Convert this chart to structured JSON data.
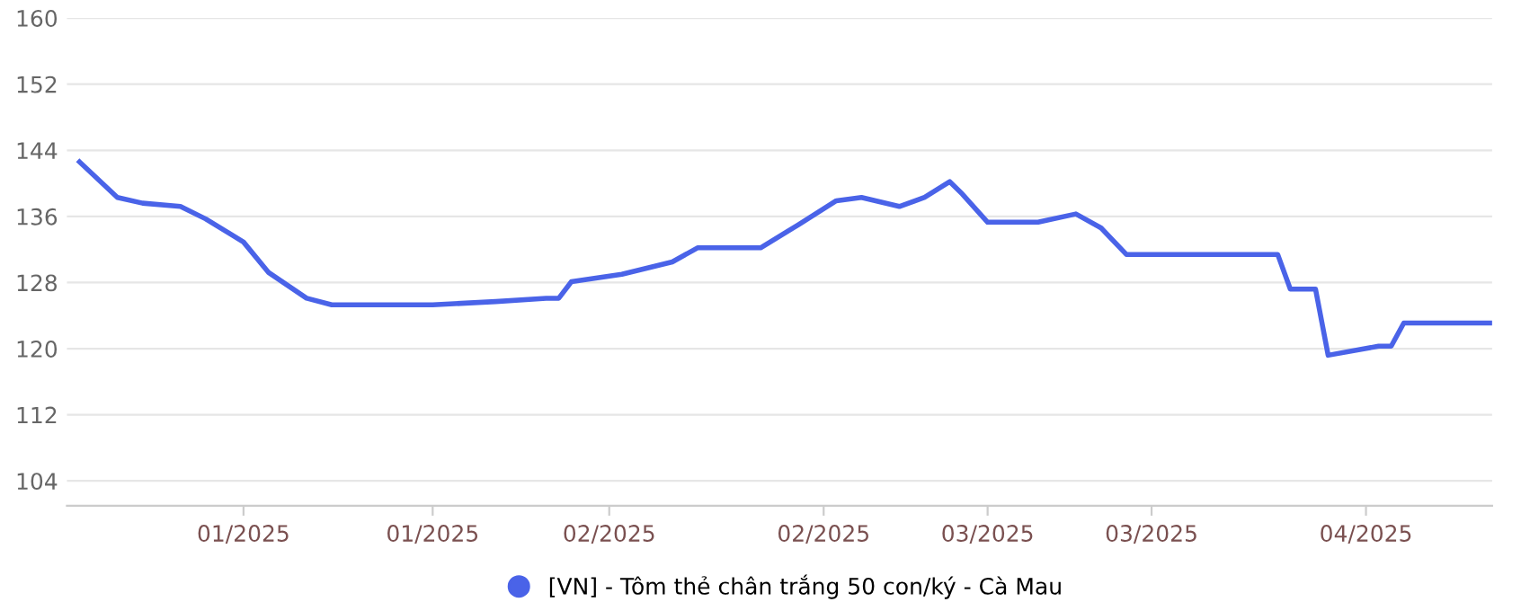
{
  "chart_data": {
    "type": "line",
    "x": [
      "2024-12-22",
      "2024-12-25",
      "2024-12-27",
      "2024-12-30",
      "2025-01-01",
      "2025-01-04",
      "2025-01-06",
      "2025-01-09",
      "2025-01-11",
      "2025-01-19",
      "2025-01-24",
      "2025-01-28",
      "2025-01-29",
      "2025-01-30",
      "2025-02-03",
      "2025-02-07",
      "2025-02-09",
      "2025-02-14",
      "2025-02-17",
      "2025-02-20",
      "2025-02-22",
      "2025-02-25",
      "2025-02-27",
      "2025-03-01",
      "2025-03-02",
      "2025-03-04",
      "2025-03-08",
      "2025-03-11",
      "2025-03-13",
      "2025-03-15",
      "2025-03-27",
      "2025-03-28",
      "2025-03-30",
      "2025-03-31",
      "2025-04-04",
      "2025-04-05",
      "2025-04-06",
      "2025-04-13"
    ],
    "series": [
      {
        "name": "[VN] - Tôm thẻ chân trắng 50 con/ký - Cà Mau",
        "color": "#4a63e8",
        "values": [
          142.6,
          138.3,
          137.6,
          137.2,
          135.7,
          132.9,
          129.2,
          126.1,
          125.3,
          125.3,
          125.7,
          126.1,
          126.1,
          128.1,
          129,
          130.5,
          132.2,
          132.2,
          135,
          137.9,
          138.3,
          137.2,
          138.3,
          140.2,
          138.7,
          135.3,
          135.3,
          136.3,
          134.6,
          131.4,
          131.4,
          127.2,
          127.2,
          119.2,
          120.3,
          120.3,
          123.1,
          123.1
        ]
      }
    ],
    "xlim": [
      "2024-12-21",
      "2025-04-13"
    ],
    "xticks": [
      {
        "value": "2025-01-04",
        "label": "01/2025"
      },
      {
        "value": "2025-01-19",
        "label": "01/2025"
      },
      {
        "value": "2025-02-02",
        "label": "02/2025"
      },
      {
        "value": "2025-02-19",
        "label": "02/2025"
      },
      {
        "value": "2025-03-04",
        "label": "03/2025"
      },
      {
        "value": "2025-03-17",
        "label": "03/2025"
      },
      {
        "value": "2025-04-03",
        "label": "04/2025"
      }
    ],
    "ylim": [
      101,
      160
    ],
    "yticks": [
      104,
      112,
      120,
      128,
      136,
      144,
      152,
      160
    ],
    "grid": "y",
    "legend": "bottom",
    "marker": "none",
    "line_style": "solid"
  }
}
